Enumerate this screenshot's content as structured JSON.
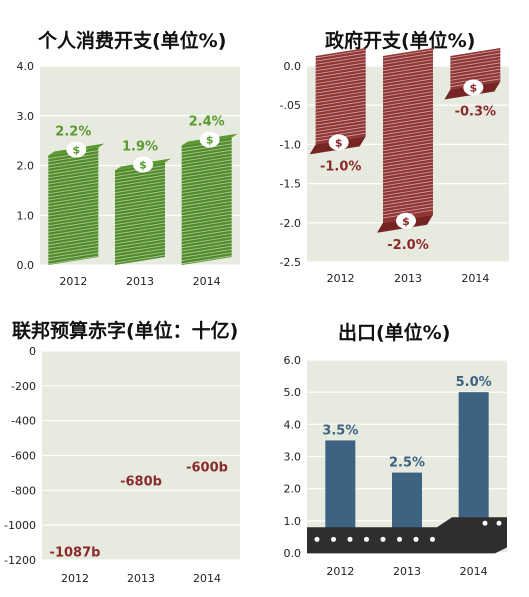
{
  "chart_data": [
    {
      "type": "bar",
      "title": "个人消费开支(单位%)",
      "categories": [
        "2012",
        "2013",
        "2014"
      ],
      "values": [
        2.2,
        1.9,
        2.4
      ],
      "data_labels": [
        "2.2%",
        "1.9%",
        "2.4%"
      ],
      "yticks": [
        "0.0",
        "1.0",
        "2.0",
        "3.0",
        "4.0"
      ],
      "ylim": [
        0,
        4
      ],
      "grid": true,
      "color": "#5b9a2e"
    },
    {
      "type": "bar",
      "title": "政府开支(单位%)",
      "categories": [
        "2012",
        "2013",
        "2014"
      ],
      "values": [
        -1.0,
        -2.0,
        -0.3
      ],
      "data_labels": [
        "-1.0%",
        "-2.0%",
        "-0.3%"
      ],
      "yticks": [
        "0.0",
        "-.05",
        "-1.0",
        "-1.5",
        "-2.0",
        "-2.5"
      ],
      "ylim": [
        -2.5,
        0
      ],
      "grid": true,
      "color": "#8b2a2a"
    },
    {
      "type": "bar",
      "title": "联邦预算赤字(单位：十亿)",
      "categories": [
        "2012",
        "2013",
        "2014"
      ],
      "values": [
        -1087,
        -680,
        -600
      ],
      "data_labels": [
        "-1087b",
        "-680b",
        "-600b"
      ],
      "yticks": [
        "0",
        "-200",
        "-400",
        "-600",
        "-800",
        "-1000",
        "-1200"
      ],
      "ylim": [
        -1200,
        0
      ],
      "grid": true,
      "color": "#8b2a2a"
    },
    {
      "type": "bar",
      "title": "出口(单位%)",
      "categories": [
        "2012",
        "2013",
        "2014"
      ],
      "values": [
        3.5,
        2.5,
        5.0
      ],
      "data_labels": [
        "3.5%",
        "2.5%",
        "5.0%"
      ],
      "yticks": [
        "0.0",
        "1.0",
        "2.0",
        "3.0",
        "4.0",
        "5.0",
        "6.0"
      ],
      "ylim": [
        0,
        6
      ],
      "grid": true,
      "color": "#3d6282"
    }
  ]
}
